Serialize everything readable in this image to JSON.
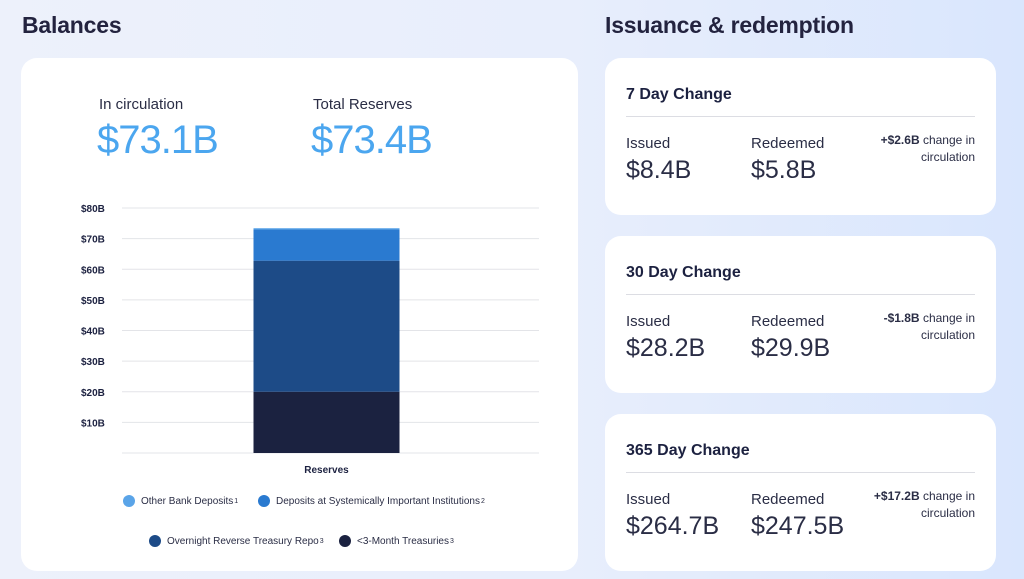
{
  "balances": {
    "title": "Balances",
    "in_circulation_label": "In circulation",
    "in_circulation_value": "$73.1B",
    "total_reserves_label": "Total Reserves",
    "total_reserves_value": "$73.4B"
  },
  "issuance": {
    "title": "Issuance & redemption",
    "cards": [
      {
        "title": "7 Day Change",
        "issued_label": "Issued",
        "issued_value": "$8.4B",
        "redeemed_label": "Redeemed",
        "redeemed_value": "$5.8B",
        "change_amount": "+$2.6B",
        "change_text": "change in circulation"
      },
      {
        "title": "30 Day Change",
        "issued_label": "Issued",
        "issued_value": "$28.2B",
        "redeemed_label": "Redeemed",
        "redeemed_value": "$29.9B",
        "change_amount": "-$1.8B",
        "change_text": "change in circulation"
      },
      {
        "title": "365 Day Change",
        "issued_label": "Issued",
        "issued_value": "$264.7B",
        "redeemed_label": "Redeemed",
        "redeemed_value": "$247.5B",
        "change_amount": "+$17.2B",
        "change_text": "change in circulation"
      }
    ]
  },
  "chart_data": {
    "type": "bar",
    "stacked": true,
    "categories": [
      "Reserves"
    ],
    "ylim": [
      0,
      80
    ],
    "yticks": [
      {
        "value": 10,
        "label": "$10B"
      },
      {
        "value": 20,
        "label": "$20B"
      },
      {
        "value": 30,
        "label": "$30B"
      },
      {
        "value": 40,
        "label": "$40B"
      },
      {
        "value": 50,
        "label": "$50B"
      },
      {
        "value": 60,
        "label": "$60B"
      },
      {
        "value": 70,
        "label": "$70B"
      },
      {
        "value": 80,
        "label": "$80B"
      }
    ],
    "series": [
      {
        "name": "<3-Month Treasuries",
        "sup": "3",
        "color": "#1b2240",
        "values": [
          20.0
        ]
      },
      {
        "name": "Overnight Reverse Treasury Repo",
        "sup": "3",
        "color": "#1d4b87",
        "values": [
          42.8
        ]
      },
      {
        "name": "Deposits at Systemically Important Institutions",
        "sup": "2",
        "color": "#2a7ad0",
        "values": [
          10.2
        ]
      },
      {
        "name": "Other Bank Deposits",
        "sup": "1",
        "color": "#5aa4e8",
        "values": [
          0.4
        ]
      }
    ],
    "grid": true,
    "legend_placement": "bottom"
  }
}
